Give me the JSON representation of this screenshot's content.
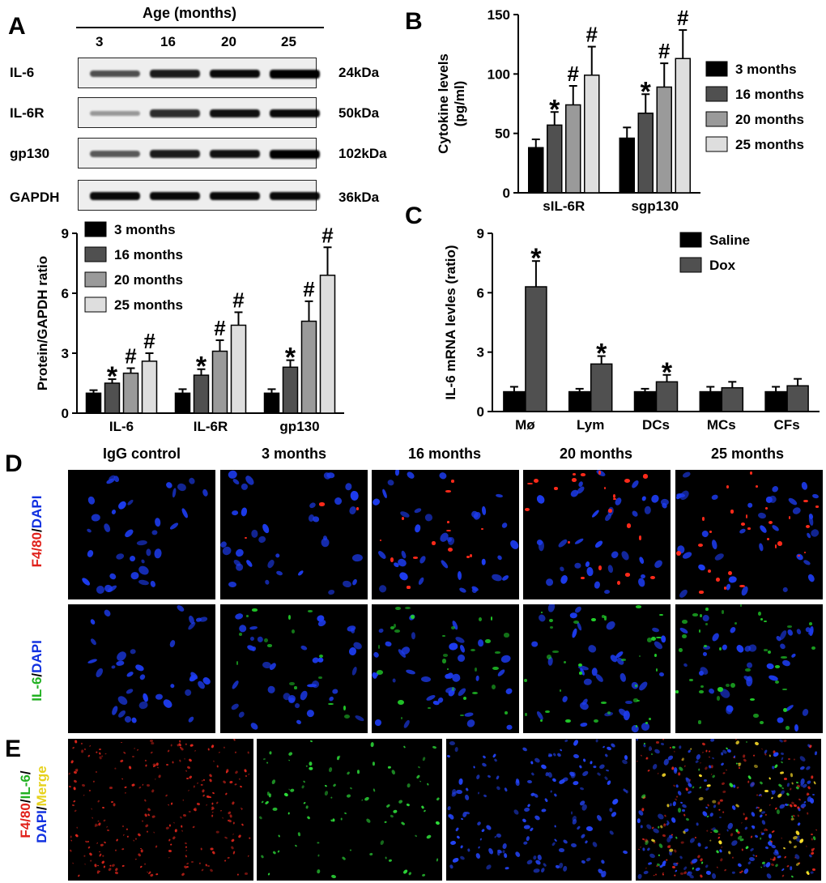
{
  "panels": {
    "A": "A",
    "B": "B",
    "C": "C",
    "D": "D",
    "E": "E"
  },
  "blot": {
    "age_header": "Age (months)",
    "lanes": [
      "3",
      "16",
      "20",
      "25"
    ],
    "rows": [
      {
        "label": "IL-6",
        "kda": "24kDa",
        "intensity": [
          0.55,
          0.85,
          0.95,
          1.0
        ]
      },
      {
        "label": "IL-6R",
        "kda": "50kDa",
        "intensity": [
          0.15,
          0.75,
          0.9,
          0.95
        ]
      },
      {
        "label": "gp130",
        "kda": "102kDa",
        "intensity": [
          0.5,
          0.85,
          0.9,
          1.0
        ]
      },
      {
        "label": "GAPDH",
        "kda": "36kDa",
        "intensity": [
          0.95,
          0.95,
          0.95,
          0.95
        ]
      }
    ]
  },
  "colors": {
    "s3": "#000000",
    "s16": "#505050",
    "s20": "#9a9a9a",
    "s25": "#dedede",
    "saline": "#000000",
    "dox": "#505050"
  },
  "chart_data": [
    {
      "id": "A-bar",
      "type": "bar",
      "categories": [
        "IL-6",
        "IL-6R",
        "gp130"
      ],
      "series": [
        {
          "name": "3 months",
          "values": [
            1.0,
            1.0,
            1.0
          ],
          "err": [
            0.15,
            0.2,
            0.2
          ],
          "mark": [
            "",
            "",
            ""
          ]
        },
        {
          "name": "16 months",
          "values": [
            1.5,
            1.9,
            2.3
          ],
          "err": [
            0.2,
            0.3,
            0.35
          ],
          "mark": [
            "*",
            "*",
            "*"
          ]
        },
        {
          "name": "20 months",
          "values": [
            2.0,
            3.1,
            4.6
          ],
          "err": [
            0.25,
            0.55,
            1.0
          ],
          "mark": [
            "#",
            "#",
            "#"
          ]
        },
        {
          "name": "25 months",
          "values": [
            2.6,
            4.4,
            6.9
          ],
          "err": [
            0.4,
            0.65,
            1.4
          ],
          "mark": [
            "#",
            "#",
            "#"
          ]
        }
      ],
      "ylabel": "Protein/GAPDH ratio",
      "ylim": [
        0,
        9
      ],
      "yticks": [
        "0",
        "3",
        "6",
        "9"
      ]
    },
    {
      "id": "B-bar",
      "type": "bar",
      "categories": [
        "sIL-6R",
        "sgp130"
      ],
      "series": [
        {
          "name": "3 months",
          "values": [
            38,
            46
          ],
          "err": [
            7,
            9
          ],
          "mark": [
            "",
            ""
          ]
        },
        {
          "name": "16 months",
          "values": [
            57,
            67
          ],
          "err": [
            11,
            16
          ],
          "mark": [
            "*",
            "*"
          ]
        },
        {
          "name": "20 months",
          "values": [
            74,
            89
          ],
          "err": [
            16,
            20
          ],
          "mark": [
            "#",
            "#"
          ]
        },
        {
          "name": "25 months",
          "values": [
            99,
            113
          ],
          "err": [
            24,
            24
          ],
          "mark": [
            "#",
            "#"
          ]
        }
      ],
      "ylabel": "Cytokine levels (pg/ml)",
      "ylabel_lines": [
        "Cytokine levels",
        "(pg/ml)"
      ],
      "ylim": [
        0,
        150
      ],
      "yticks": [
        "0",
        "50",
        "100",
        "150"
      ]
    },
    {
      "id": "C-bar",
      "type": "bar",
      "categories": [
        "Mø",
        "Lym",
        "DCs",
        "MCs",
        "CFs"
      ],
      "series": [
        {
          "name": "Saline",
          "values": [
            1.0,
            1.0,
            1.0,
            1.0,
            1.0
          ],
          "err": [
            0.25,
            0.15,
            0.15,
            0.25,
            0.25
          ],
          "mark": [
            "",
            "",
            "",
            "",
            ""
          ]
        },
        {
          "name": "Dox",
          "values": [
            6.3,
            2.4,
            1.5,
            1.2,
            1.3
          ],
          "err": [
            1.3,
            0.4,
            0.35,
            0.3,
            0.35
          ],
          "mark": [
            "*",
            "*",
            "*",
            "",
            ""
          ]
        }
      ],
      "ylabel": "IL-6 mRNA levles (ratio)",
      "ylim": [
        0,
        9
      ],
      "yticks": [
        "0",
        "3",
        "6",
        "9"
      ]
    }
  ],
  "micrographs": {
    "columns": [
      "IgG control",
      "3 months",
      "16 months",
      "20 months",
      "25 months"
    ],
    "row1_label": {
      "a": "F4/80",
      "sep": "/",
      "b": "DAPI"
    },
    "row2_label": {
      "a": "IL-6",
      "sep": "/",
      "b": "DAPI"
    },
    "row3_label": {
      "a": "F4/80",
      "s1": "/",
      "b": "IL-6",
      "s2": "/",
      "c": "DAPI",
      "s3": "/",
      "d": "Merge"
    }
  }
}
